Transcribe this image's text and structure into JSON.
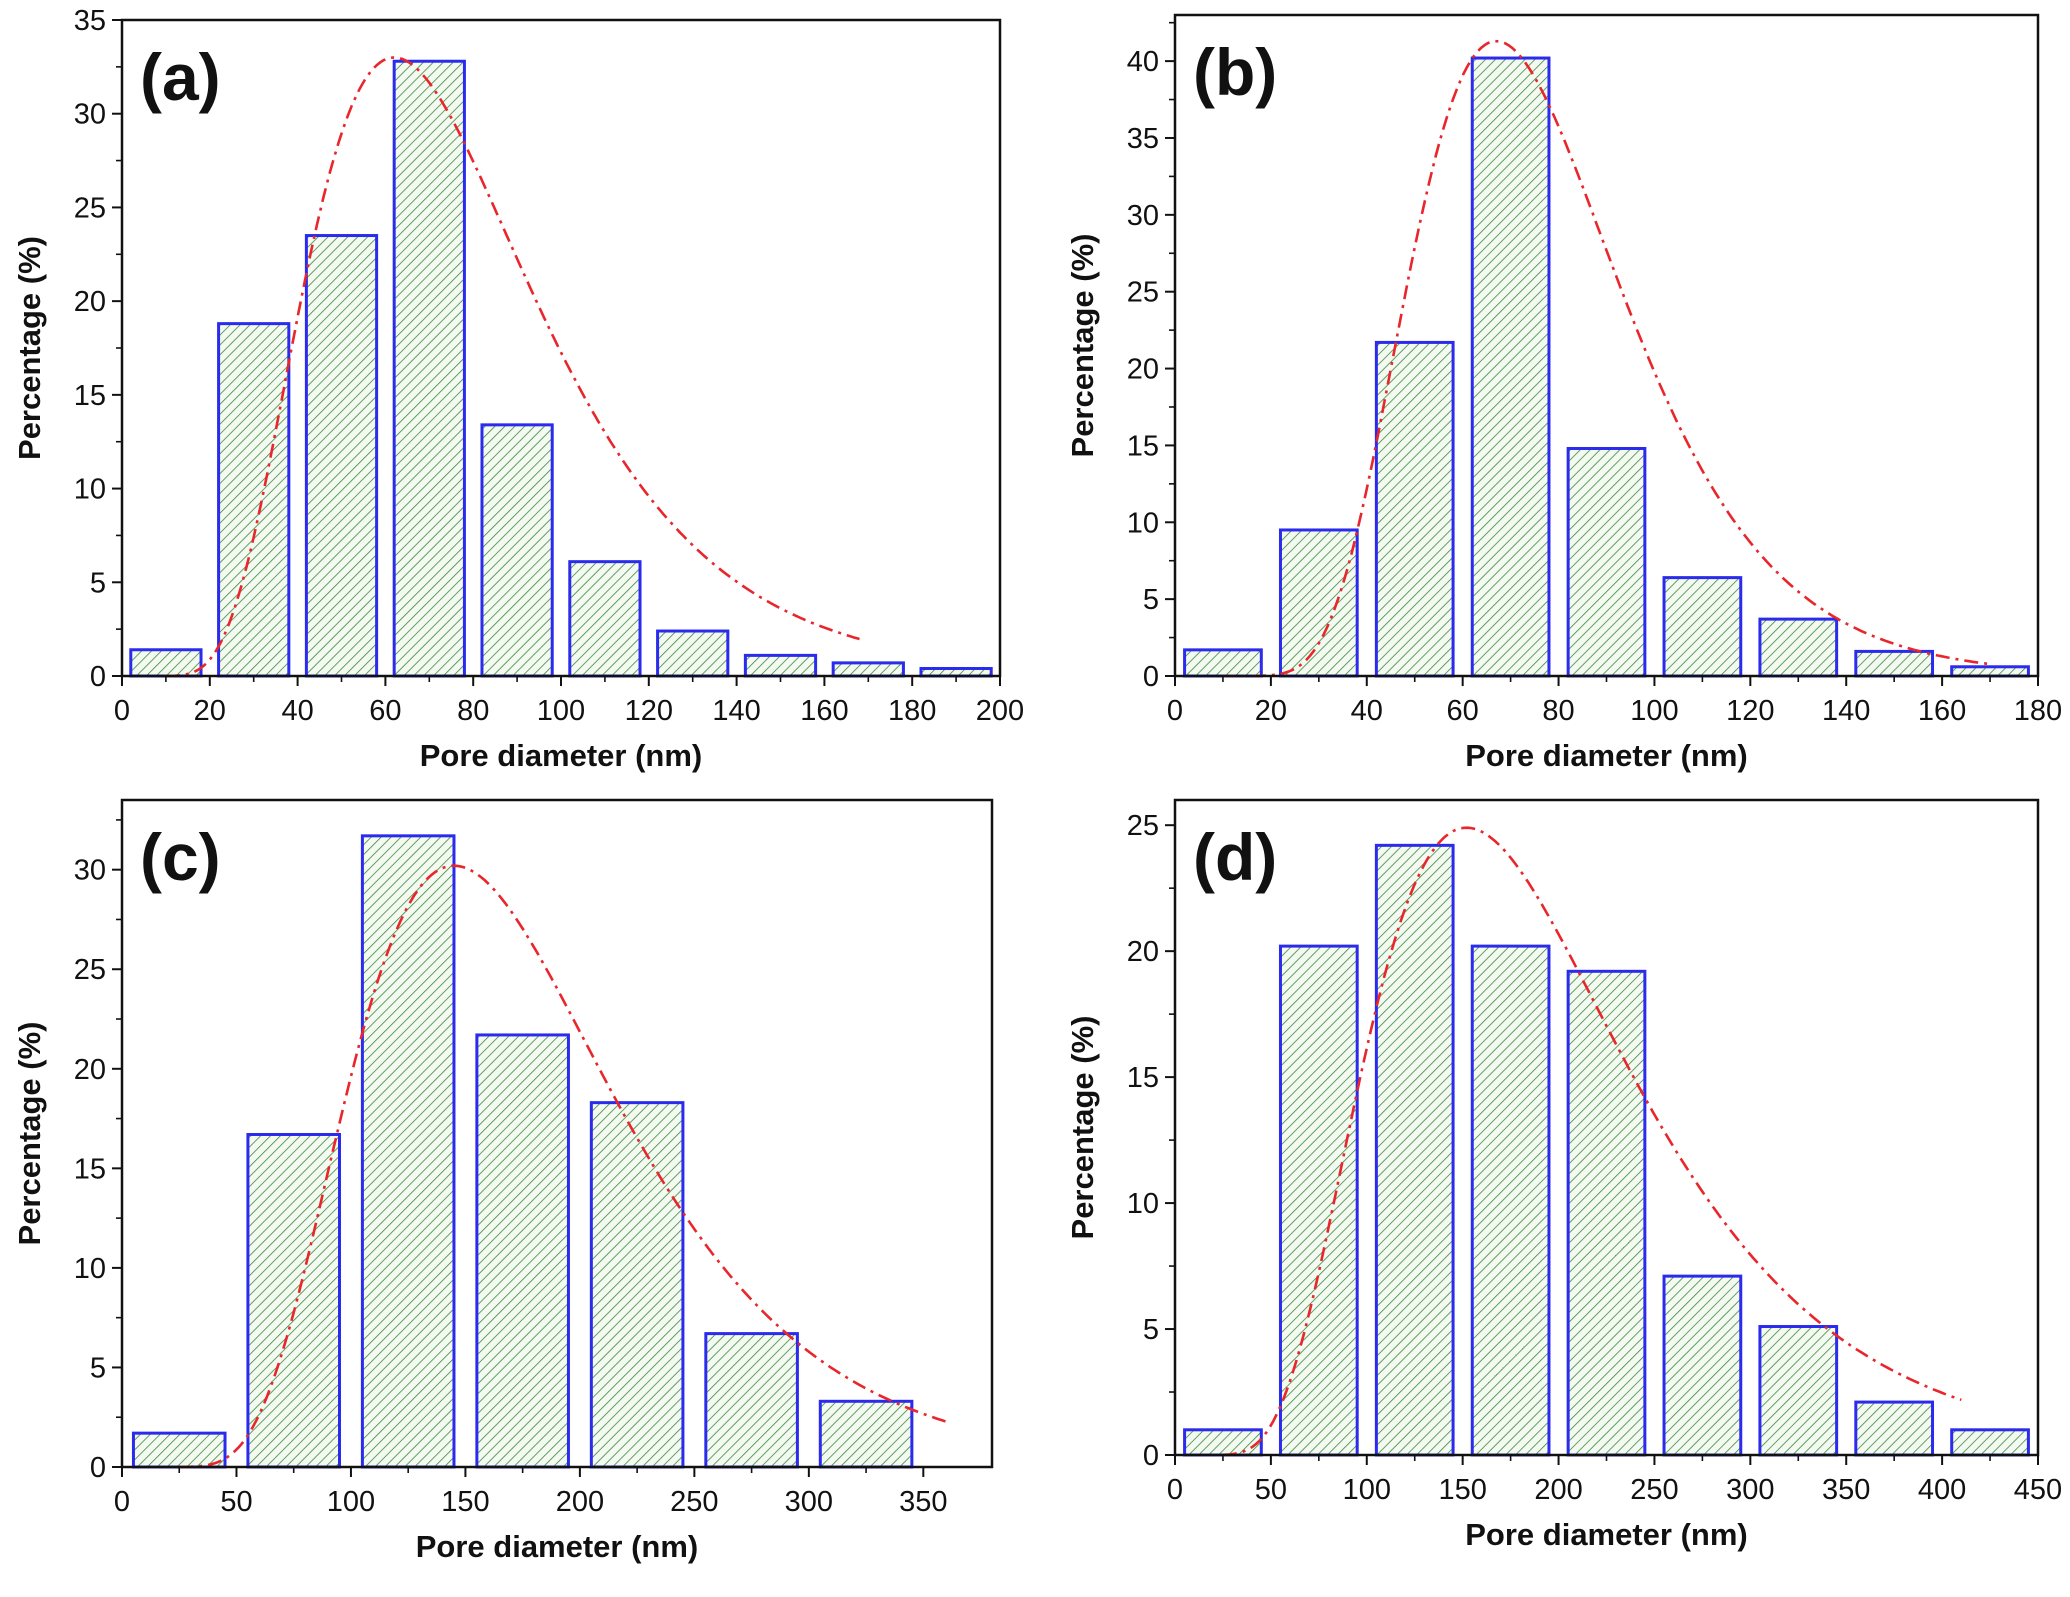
{
  "style": {
    "bar_edge": "#2b2bee",
    "bar_fill_base": "#f4faf2",
    "bar_hatch": "#3a8a3a",
    "fit_line": "#e8262b",
    "axis": "#111111"
  },
  "chart_data": [
    {
      "type": "bar",
      "panel": "(a)",
      "title": "",
      "xlabel": "Pore diameter (nm)",
      "ylabel": "Percentage (%)",
      "xlim": [
        0,
        200
      ],
      "ylim": [
        0,
        35
      ],
      "xticks": [
        0,
        20,
        40,
        60,
        80,
        100,
        120,
        140,
        160,
        180,
        200
      ],
      "yticks": [
        0,
        5,
        10,
        15,
        20,
        25,
        30,
        35
      ],
      "grid": false,
      "bar_width": 16,
      "bars": [
        {
          "x": 10,
          "value": 1.4
        },
        {
          "x": 30,
          "value": 18.8
        },
        {
          "x": 50,
          "value": 23.5
        },
        {
          "x": 70,
          "value": 32.8
        },
        {
          "x": 90,
          "value": 13.4
        },
        {
          "x": 110,
          "value": 6.1
        },
        {
          "x": 130,
          "value": 2.4
        },
        {
          "x": 150,
          "value": 1.1
        },
        {
          "x": 170,
          "value": 0.7
        },
        {
          "x": 190,
          "value": 0.4
        }
      ],
      "fit": {
        "type": "lognormal",
        "peak_x": 62,
        "peak_y": 33.0,
        "sigma": 0.42,
        "x_range": [
          10,
          168
        ]
      }
    },
    {
      "type": "bar",
      "panel": "(b)",
      "title": "",
      "xlabel": "Pore diameter (nm)",
      "ylabel": "Percentage (%)",
      "xlim": [
        0,
        180
      ],
      "ylim": [
        0,
        43
      ],
      "xticks": [
        0,
        20,
        40,
        60,
        80,
        100,
        120,
        140,
        160,
        180
      ],
      "yticks": [
        0,
        5,
        10,
        15,
        20,
        25,
        30,
        35,
        40
      ],
      "grid": false,
      "bar_width": 16,
      "bars": [
        {
          "x": 10,
          "value": 1.7
        },
        {
          "x": 30,
          "value": 9.5
        },
        {
          "x": 50,
          "value": 21.7
        },
        {
          "x": 70,
          "value": 40.2
        },
        {
          "x": 90,
          "value": 14.8
        },
        {
          "x": 110,
          "value": 6.4
        },
        {
          "x": 130,
          "value": 3.7
        },
        {
          "x": 150,
          "value": 1.6
        },
        {
          "x": 170,
          "value": 0.6
        }
      ],
      "fit": {
        "type": "lognormal",
        "peak_x": 67,
        "peak_y": 41.3,
        "sigma": 0.33,
        "x_range": [
          10,
          170
        ]
      }
    },
    {
      "type": "bar",
      "panel": "(c)",
      "title": "",
      "xlabel": "Pore diameter (nm)",
      "ylabel": "Percentage (%)",
      "xlim": [
        0,
        380
      ],
      "ylim": [
        0,
        33.5
      ],
      "xticks": [
        0,
        50,
        100,
        150,
        200,
        250,
        300,
        350
      ],
      "yticks": [
        0,
        5,
        10,
        15,
        20,
        25,
        30
      ],
      "grid": false,
      "bar_width": 40,
      "bars": [
        {
          "x": 25,
          "value": 1.7
        },
        {
          "x": 75,
          "value": 16.7
        },
        {
          "x": 125,
          "value": 31.7
        },
        {
          "x": 175,
          "value": 21.7
        },
        {
          "x": 225,
          "value": 18.3
        },
        {
          "x": 275,
          "value": 6.7
        },
        {
          "x": 325,
          "value": 3.3
        }
      ],
      "fit": {
        "type": "lognormal",
        "peak_x": 145,
        "peak_y": 30.2,
        "sigma": 0.4,
        "x_range": [
          25,
          362
        ]
      }
    },
    {
      "type": "bar",
      "panel": "(d)",
      "title": "",
      "xlabel": "Pore diameter (nm)",
      "ylabel": "Percentage (%)",
      "xlim": [
        0,
        450
      ],
      "ylim": [
        0,
        26
      ],
      "xticks": [
        0,
        50,
        100,
        150,
        200,
        250,
        300,
        350,
        400,
        450
      ],
      "yticks": [
        0,
        5,
        10,
        15,
        20,
        25
      ],
      "grid": false,
      "bar_width": 40,
      "bars": [
        {
          "x": 25,
          "value": 1.0
        },
        {
          "x": 75,
          "value": 20.2
        },
        {
          "x": 125,
          "value": 24.2
        },
        {
          "x": 175,
          "value": 20.2
        },
        {
          "x": 225,
          "value": 19.2
        },
        {
          "x": 275,
          "value": 7.1
        },
        {
          "x": 325,
          "value": 5.1
        },
        {
          "x": 375,
          "value": 2.1
        },
        {
          "x": 425,
          "value": 1.0
        }
      ],
      "fit": {
        "type": "lognormal",
        "peak_x": 152,
        "peak_y": 24.9,
        "sigma": 0.45,
        "x_range": [
          25,
          410
        ]
      }
    }
  ]
}
